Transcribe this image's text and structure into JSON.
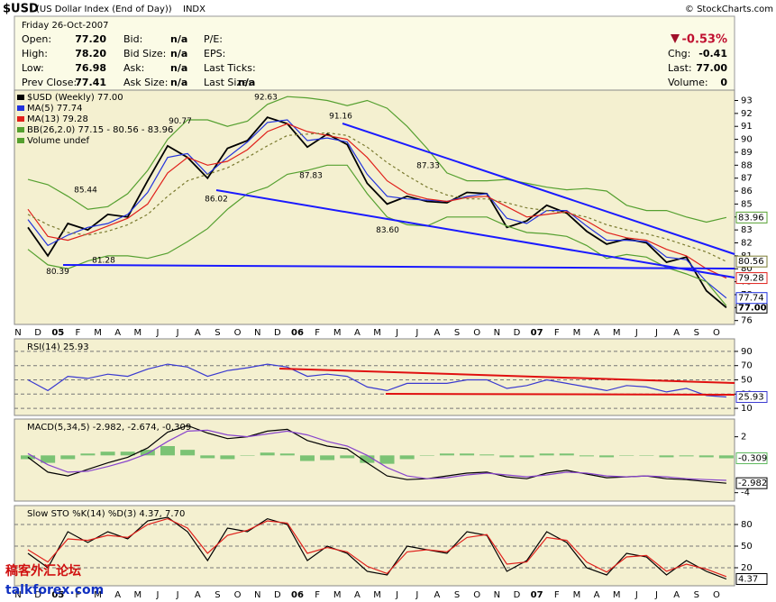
{
  "header": {
    "symbol": "$USD",
    "name": "(US Dollar Index (End of Day))",
    "exchange": "INDX",
    "source": "© StockCharts.com",
    "date": "Friday  26-Oct-2007",
    "columns": [
      [
        {
          "label": "Open:",
          "value": "77.20"
        },
        {
          "label": "High:",
          "value": "78.20"
        },
        {
          "label": "Low:",
          "value": "76.98"
        },
        {
          "label": "Prev Close:",
          "value": "77.41"
        }
      ],
      [
        {
          "label": "Bid:",
          "value": "n/a"
        },
        {
          "label": "Bid Size:",
          "value": "n/a"
        },
        {
          "label": "Ask:",
          "value": "n/a"
        },
        {
          "label": "Ask Size:",
          "value": "n/a"
        }
      ],
      [
        {
          "label": "P/E:"
        },
        {
          "label": "EPS:"
        },
        {
          "label": "Last Ticks:"
        },
        {
          "label": "Last Size:",
          "value": "n/a"
        }
      ]
    ],
    "change_pct": "-0.53%",
    "stats": [
      {
        "label": "Chg:",
        "value": "-0.41"
      },
      {
        "label": "Last:",
        "value": "77.00"
      },
      {
        "label": "Volume:",
        "value": "0"
      }
    ]
  },
  "watermark": [
    "稿客外汇论坛",
    "talkforex.com"
  ],
  "chart_data": [
    {
      "type": "line",
      "grid": false,
      "categories": [
        "N",
        "D",
        "05",
        "F",
        "M",
        "A",
        "M",
        "J",
        "J",
        "A",
        "S",
        "O",
        "N",
        "D",
        "06",
        "F",
        "M",
        "A",
        "M",
        "J",
        "J",
        "A",
        "S",
        "O",
        "N",
        "D",
        "07",
        "F",
        "M",
        "A",
        "M",
        "J",
        "J",
        "A",
        "S",
        "O"
      ],
      "ylim": [
        75.7,
        93.8
      ],
      "yticks": [
        76,
        77,
        78,
        79,
        80,
        81,
        82,
        83,
        84,
        85,
        86,
        87,
        88,
        89,
        90,
        91,
        92,
        93
      ],
      "legend_extra": "Volume undef",
      "series": [
        {
          "name": "$USD (Weekly) 77.00",
          "color": "#000000",
          "end_label": "77.00",
          "values": [
            83.2,
            81.0,
            83.5,
            83.0,
            84.2,
            84.0,
            86.8,
            89.5,
            88.6,
            87.0,
            89.3,
            89.9,
            91.7,
            91.2,
            89.4,
            90.4,
            89.6,
            86.6,
            85.0,
            85.6,
            85.2,
            85.1,
            85.9,
            85.8,
            83.2,
            83.7,
            84.9,
            84.3,
            82.9,
            81.9,
            82.3,
            82.0,
            80.5,
            80.9,
            78.3,
            77.0
          ]
        },
        {
          "name": "MA(5) 77.74",
          "color": "#2233dd",
          "end_label": "77.74",
          "values": [
            83.8,
            81.8,
            82.6,
            83.2,
            83.5,
            84.2,
            85.9,
            88.6,
            88.9,
            87.3,
            88.6,
            89.8,
            91.3,
            91.5,
            89.9,
            90.1,
            89.8,
            87.3,
            85.6,
            85.4,
            85.3,
            85.2,
            85.6,
            85.8,
            83.9,
            83.5,
            84.5,
            84.5,
            83.3,
            82.2,
            82.2,
            82.1,
            80.9,
            80.7,
            79.0,
            77.74
          ]
        },
        {
          "name": "MA(13) 79.28",
          "color": "#e0201b",
          "end_label": "79.28",
          "values": [
            84.6,
            82.5,
            82.2,
            82.7,
            83.3,
            83.9,
            85.0,
            87.4,
            88.6,
            88.0,
            88.3,
            89.2,
            90.6,
            91.2,
            90.6,
            90.3,
            90.0,
            88.6,
            86.8,
            85.8,
            85.4,
            85.2,
            85.5,
            85.6,
            84.8,
            84.0,
            84.2,
            84.4,
            83.7,
            82.8,
            82.4,
            82.2,
            81.5,
            81.0,
            80.0,
            79.28
          ]
        },
        {
          "name": "BB(26,2.0) 77.15 - 80.56 - 83.96",
          "color": "#55a030",
          "end_label": "83.96",
          "values": [
            86.9,
            86.5,
            85.6,
            84.6,
            84.8,
            85.8,
            87.6,
            90.0,
            91.5,
            91.5,
            91.0,
            91.4,
            92.7,
            93.3,
            93.2,
            93.0,
            92.6,
            93.0,
            92.4,
            91.0,
            89.3,
            87.4,
            86.8,
            86.8,
            86.9,
            86.6,
            86.3,
            86.1,
            86.2,
            86.0,
            84.9,
            84.5,
            84.5,
            84.0,
            83.6,
            83.96
          ]
        },
        {
          "color": "#55a030",
          "values": [
            81.5,
            80.3,
            80.0,
            80.6,
            81.0,
            81.0,
            80.8,
            81.2,
            82.1,
            83.1,
            84.6,
            85.8,
            86.3,
            87.3,
            87.6,
            88.0,
            88.0,
            85.8,
            84.0,
            83.4,
            83.3,
            84.0,
            84.0,
            84.0,
            83.3,
            82.8,
            82.7,
            82.5,
            81.8,
            80.8,
            81.1,
            80.9,
            80.1,
            79.6,
            79.0,
            77.15
          ]
        },
        {
          "color": "#7a7a30",
          "style": "dashed",
          "end_label": "80.56",
          "values": [
            84.2,
            83.4,
            82.8,
            82.6,
            82.9,
            83.4,
            84.2,
            85.6,
            86.8,
            87.3,
            87.8,
            88.6,
            89.5,
            90.3,
            90.4,
            90.5,
            90.3,
            89.4,
            88.2,
            87.2,
            86.3,
            85.7,
            85.4,
            85.4,
            85.1,
            84.7,
            84.5,
            84.3,
            84.0,
            83.4,
            83.0,
            82.7,
            82.3,
            81.8,
            81.3,
            80.56
          ]
        }
      ],
      "annotations": [
        {
          "value": 85.44,
          "label": "85.44"
        },
        {
          "value": 80.39,
          "label": "80.39"
        },
        {
          "value": 81.28,
          "label": "81.28"
        },
        {
          "value": 90.77,
          "label": "90.77"
        },
        {
          "value": 86.02,
          "label": "86.02"
        },
        {
          "value": 92.63,
          "label": "92.63"
        },
        {
          "value": 87.83,
          "label": "87.83"
        },
        {
          "value": 91.16,
          "label": "91.16"
        },
        {
          "value": 83.6,
          "label": "83.60"
        },
        {
          "value": 87.33,
          "label": "87.33"
        }
      ]
    },
    {
      "type": "line",
      "grid": true,
      "legend": "RSI(14) 25.93",
      "ylim": [
        0,
        100
      ],
      "yticks": [
        10,
        30,
        50,
        70,
        90
      ],
      "series": [
        {
          "color": "#3a3ad0",
          "end_label": "25.93",
          "values": [
            50,
            35,
            55,
            52,
            58,
            55,
            65,
            72,
            68,
            55,
            63,
            67,
            72,
            68,
            55,
            58,
            55,
            40,
            35,
            45,
            45,
            45,
            50,
            50,
            38,
            42,
            50,
            45,
            40,
            35,
            42,
            40,
            33,
            38,
            28,
            25.93
          ]
        }
      ]
    },
    {
      "type": "line",
      "grid": false,
      "legend": "MACD(5,34,5) -2.982, -2.674, -0.309",
      "ylim": [
        -4.9,
        3.9
      ],
      "yticks": [
        -4,
        2
      ],
      "series": [
        {
          "type": "bar",
          "color": "#5cb85c",
          "end_label": "-0.309",
          "values": [
            -0.4,
            -0.8,
            -0.4,
            0.2,
            0.4,
            0.4,
            0.6,
            1.0,
            0.6,
            -0.3,
            -0.4,
            0.0,
            0.3,
            0.2,
            -0.6,
            -0.5,
            -0.3,
            -0.8,
            -0.9,
            -0.4,
            0.0,
            0.2,
            0.2,
            0.1,
            -0.2,
            -0.2,
            0.2,
            0.2,
            -0.1,
            -0.2,
            0.0,
            0.0,
            -0.2,
            -0.1,
            -0.2,
            -0.309
          ]
        },
        {
          "color": "#000000",
          "end_label": "-2.982",
          "values": [
            -0.2,
            -1.8,
            -2.2,
            -1.5,
            -0.8,
            -0.2,
            0.8,
            2.5,
            3.2,
            2.4,
            1.8,
            2.0,
            2.6,
            2.8,
            1.6,
            1.0,
            0.7,
            -0.8,
            -2.2,
            -2.6,
            -2.5,
            -2.2,
            -1.9,
            -1.8,
            -2.3,
            -2.5,
            -1.9,
            -1.6,
            -2.0,
            -2.4,
            -2.3,
            -2.2,
            -2.5,
            -2.6,
            -2.8,
            -2.982
          ]
        },
        {
          "color": "#8844cc",
          "values": [
            0.2,
            -1.0,
            -1.8,
            -1.7,
            -1.2,
            -0.6,
            0.2,
            1.5,
            2.6,
            2.7,
            2.2,
            2.0,
            2.3,
            2.6,
            2.2,
            1.5,
            1.0,
            0.0,
            -1.3,
            -2.2,
            -2.5,
            -2.4,
            -2.1,
            -1.9,
            -2.1,
            -2.3,
            -2.1,
            -1.8,
            -1.9,
            -2.2,
            -2.3,
            -2.2,
            -2.3,
            -2.5,
            -2.6,
            -2.674
          ]
        }
      ]
    },
    {
      "type": "line",
      "grid": true,
      "legend": "Slow STO %K(14) %D(3) 4.37, 7.70",
      "ylim": [
        0,
        100
      ],
      "yticks": [
        20,
        50,
        80
      ],
      "categories": [
        "N",
        "D",
        "05",
        "F",
        "M",
        "A",
        "M",
        "J",
        "J",
        "A",
        "S",
        "O",
        "N",
        "D",
        "06",
        "F",
        "M",
        "A",
        "M",
        "J",
        "J",
        "A",
        "S",
        "O",
        "N",
        "D",
        "07",
        "F",
        "M",
        "A",
        "M",
        "J",
        "J",
        "A",
        "S",
        "O"
      ],
      "series": [
        {
          "color": "#000000",
          "end_label": "4.37",
          "values": [
            40,
            20,
            70,
            55,
            70,
            60,
            85,
            90,
            70,
            30,
            75,
            70,
            88,
            80,
            30,
            50,
            40,
            15,
            10,
            50,
            45,
            40,
            70,
            65,
            15,
            30,
            70,
            55,
            20,
            10,
            40,
            35,
            10,
            30,
            15,
            4.37
          ]
        },
        {
          "color": "#e0201b",
          "values": [
            45,
            28,
            60,
            58,
            65,
            62,
            80,
            88,
            75,
            40,
            65,
            72,
            85,
            82,
            40,
            48,
            42,
            22,
            12,
            42,
            45,
            42,
            62,
            66,
            25,
            28,
            62,
            58,
            28,
            14,
            35,
            37,
            15,
            25,
            18,
            7.7
          ]
        }
      ]
    }
  ]
}
